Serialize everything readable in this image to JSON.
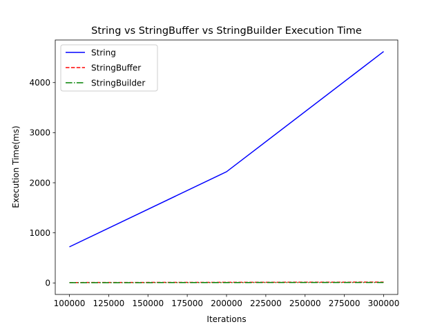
{
  "chart_data": {
    "type": "line",
    "title": "String vs StringBuffer vs StringBuilder Execution Time",
    "xlabel": "Iterations",
    "ylabel": "Execution Time(ms)",
    "x": [
      100000,
      200000,
      300000
    ],
    "xlim": [
      91000,
      309000
    ],
    "ylim": [
      -230,
      4850
    ],
    "xticks": [
      100000,
      125000,
      150000,
      175000,
      200000,
      225000,
      250000,
      275000,
      300000
    ],
    "yticks": [
      0,
      1000,
      2000,
      3000,
      4000
    ],
    "grid": false,
    "legend_position": "top-left",
    "series": [
      {
        "name": "String",
        "values": [
          720,
          2220,
          4620
        ],
        "color": "#0000ff",
        "style": "solid"
      },
      {
        "name": "StringBuffer",
        "values": [
          8,
          12,
          16
        ],
        "color": "#ff0000",
        "style": "dashed"
      },
      {
        "name": "StringBuilder",
        "values": [
          5,
          8,
          10
        ],
        "color": "#008000",
        "style": "dashdot"
      }
    ]
  }
}
